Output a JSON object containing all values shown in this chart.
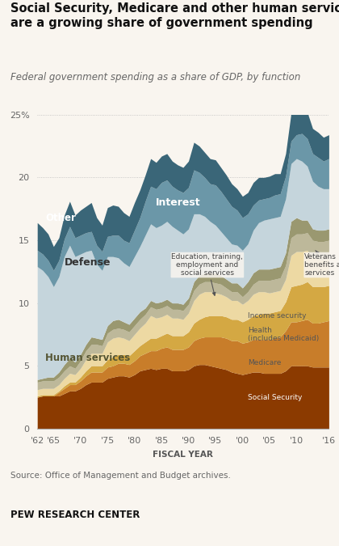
{
  "title": "Social Security, Medicare and other human services\nare a growing share of government spending",
  "subtitle": "Federal government spending as a share of GDP, by function",
  "xlabel": "FISCAL YEAR",
  "source": "Source: Office of Management and Budget archives.",
  "brand": "PEW RESEARCH CENTER",
  "years": [
    1962,
    1963,
    1964,
    1965,
    1966,
    1967,
    1968,
    1969,
    1970,
    1971,
    1972,
    1973,
    1974,
    1975,
    1976,
    1977,
    1978,
    1979,
    1980,
    1981,
    1982,
    1983,
    1984,
    1985,
    1986,
    1987,
    1988,
    1989,
    1990,
    1991,
    1992,
    1993,
    1994,
    1995,
    1996,
    1997,
    1998,
    1999,
    2000,
    2001,
    2002,
    2003,
    2004,
    2005,
    2006,
    2007,
    2008,
    2009,
    2010,
    2011,
    2012,
    2013,
    2014,
    2015,
    2016
  ],
  "social_security": [
    2.5,
    2.6,
    2.6,
    2.6,
    2.6,
    2.8,
    3.0,
    3.0,
    3.2,
    3.5,
    3.7,
    3.7,
    3.7,
    4.0,
    4.1,
    4.2,
    4.2,
    4.1,
    4.3,
    4.6,
    4.7,
    4.8,
    4.7,
    4.8,
    4.8,
    4.6,
    4.6,
    4.6,
    4.7,
    5.0,
    5.1,
    5.1,
    5.0,
    4.9,
    4.8,
    4.7,
    4.5,
    4.4,
    4.3,
    4.4,
    4.5,
    4.5,
    4.4,
    4.4,
    4.4,
    4.4,
    4.6,
    5.0,
    5.0,
    5.0,
    5.0,
    4.9,
    4.9,
    4.9,
    4.9
  ],
  "medicare": [
    0.0,
    0.0,
    0.0,
    0.0,
    0.3,
    0.4,
    0.5,
    0.5,
    0.6,
    0.7,
    0.8,
    0.8,
    0.8,
    0.9,
    0.9,
    1.0,
    1.0,
    1.0,
    1.1,
    1.2,
    1.3,
    1.4,
    1.5,
    1.6,
    1.7,
    1.7,
    1.7,
    1.7,
    1.8,
    2.0,
    2.1,
    2.2,
    2.3,
    2.4,
    2.5,
    2.5,
    2.5,
    2.6,
    2.5,
    2.5,
    2.6,
    2.6,
    2.7,
    2.7,
    2.8,
    2.9,
    3.2,
    3.5,
    3.5,
    3.6,
    3.7,
    3.5,
    3.5,
    3.6,
    3.7
  ],
  "health": [
    0.1,
    0.1,
    0.1,
    0.1,
    0.1,
    0.2,
    0.2,
    0.2,
    0.3,
    0.4,
    0.5,
    0.5,
    0.5,
    0.6,
    0.7,
    0.7,
    0.7,
    0.7,
    0.8,
    0.8,
    0.9,
    1.0,
    1.0,
    1.0,
    1.1,
    1.1,
    1.1,
    1.1,
    1.2,
    1.4,
    1.5,
    1.6,
    1.7,
    1.7,
    1.7,
    1.7,
    1.7,
    1.7,
    1.7,
    1.8,
    1.9,
    2.0,
    2.1,
    2.1,
    2.1,
    2.1,
    2.3,
    2.8,
    2.9,
    2.9,
    3.0,
    2.9,
    2.9,
    2.8,
    2.8
  ],
  "income_security": [
    0.5,
    0.5,
    0.5,
    0.5,
    0.5,
    0.6,
    0.7,
    0.6,
    0.7,
    0.9,
    1.0,
    1.0,
    1.0,
    1.4,
    1.5,
    1.4,
    1.3,
    1.2,
    1.3,
    1.4,
    1.5,
    1.8,
    1.6,
    1.5,
    1.5,
    1.4,
    1.4,
    1.3,
    1.5,
    1.8,
    2.0,
    2.0,
    1.9,
    1.8,
    1.7,
    1.6,
    1.5,
    1.5,
    1.4,
    1.5,
    1.7,
    1.8,
    1.7,
    1.6,
    1.6,
    1.6,
    1.8,
    2.5,
    2.7,
    2.6,
    2.5,
    2.3,
    2.2,
    2.1,
    2.1
  ],
  "veterans": [
    0.6,
    0.6,
    0.6,
    0.6,
    0.6,
    0.6,
    0.6,
    0.5,
    0.6,
    0.7,
    0.7,
    0.7,
    0.6,
    0.7,
    0.7,
    0.7,
    0.7,
    0.7,
    0.7,
    0.7,
    0.7,
    0.7,
    0.7,
    0.7,
    0.7,
    0.7,
    0.7,
    0.7,
    0.7,
    0.8,
    0.8,
    0.8,
    0.8,
    0.8,
    0.8,
    0.7,
    0.7,
    0.7,
    0.6,
    0.7,
    0.8,
    0.9,
    0.9,
    1.0,
    1.0,
    1.0,
    1.1,
    1.4,
    1.4,
    1.4,
    1.4,
    1.4,
    1.4,
    1.5,
    1.5
  ],
  "education": [
    0.2,
    0.2,
    0.3,
    0.3,
    0.4,
    0.5,
    0.6,
    0.5,
    0.5,
    0.5,
    0.6,
    0.5,
    0.5,
    0.6,
    0.7,
    0.7,
    0.6,
    0.6,
    0.6,
    0.6,
    0.5,
    0.5,
    0.5,
    0.5,
    0.5,
    0.5,
    0.5,
    0.5,
    0.5,
    0.7,
    0.7,
    0.7,
    0.7,
    0.8,
    0.7,
    0.7,
    0.7,
    0.7,
    0.7,
    0.8,
    0.9,
    0.9,
    0.9,
    0.9,
    0.9,
    0.9,
    1.0,
    1.3,
    1.3,
    1.1,
    1.0,
    0.9,
    0.9,
    0.9,
    0.9
  ],
  "defense": [
    9.0,
    8.6,
    8.0,
    7.2,
    7.6,
    8.6,
    9.0,
    8.4,
    8.0,
    7.4,
    6.9,
    5.9,
    5.5,
    5.5,
    5.1,
    4.9,
    4.7,
    4.6,
    4.9,
    5.2,
    5.8,
    6.1,
    6.0,
    6.1,
    6.2,
    6.1,
    5.8,
    5.6,
    5.5,
    5.4,
    4.9,
    4.5,
    4.1,
    3.8,
    3.5,
    3.3,
    3.1,
    3.0,
    3.0,
    3.0,
    3.4,
    3.7,
    3.9,
    4.0,
    4.0,
    4.0,
    4.3,
    4.6,
    4.7,
    4.7,
    4.3,
    3.8,
    3.5,
    3.3,
    3.2
  ],
  "interest": [
    1.3,
    1.3,
    1.3,
    1.3,
    1.3,
    1.4,
    1.5,
    1.5,
    1.5,
    1.5,
    1.5,
    1.5,
    1.5,
    1.6,
    1.7,
    1.8,
    1.8,
    1.9,
    2.1,
    2.3,
    2.7,
    3.0,
    3.1,
    3.4,
    3.3,
    3.2,
    3.2,
    3.3,
    3.3,
    3.5,
    3.3,
    3.1,
    3.0,
    3.2,
    3.2,
    3.1,
    3.0,
    2.8,
    2.6,
    2.4,
    2.0,
    1.8,
    1.7,
    1.7,
    1.8,
    1.8,
    1.8,
    1.8,
    1.9,
    2.2,
    2.2,
    2.2,
    2.3,
    2.2,
    2.4
  ],
  "other": [
    2.2,
    2.1,
    2.1,
    1.9,
    1.8,
    1.9,
    2.0,
    1.8,
    2.0,
    2.1,
    2.3,
    2.2,
    2.1,
    2.3,
    2.4,
    2.3,
    2.2,
    2.1,
    2.2,
    2.2,
    2.1,
    2.2,
    2.1,
    2.1,
    2.1,
    2.0,
    2.0,
    2.0,
    2.1,
    2.2,
    2.1,
    2.0,
    2.0,
    2.0,
    1.9,
    1.9,
    1.8,
    1.7,
    1.7,
    1.7,
    1.8,
    1.8,
    1.7,
    1.7,
    1.7,
    1.6,
    1.8,
    2.2,
    2.2,
    2.2,
    2.1,
    2.0,
    2.0,
    1.9,
    1.9
  ],
  "colors": {
    "social_security": "#8B3A00",
    "medicare": "#C87D2A",
    "health": "#D4A843",
    "income_security": "#EDD9A3",
    "veterans": "#BDB89A",
    "education": "#9A9870",
    "defense": "#C5D5DC",
    "interest": "#6B97A8",
    "other": "#3A6678"
  },
  "xticks": [
    1962,
    1965,
    1970,
    1975,
    1980,
    1985,
    1990,
    1995,
    2000,
    2005,
    2010,
    2016
  ],
  "xtick_labels": [
    "'62",
    "'65",
    "'70",
    "'75",
    "'80",
    "'85",
    "'90",
    "'95",
    "'00",
    "'05",
    "'10",
    "'16"
  ],
  "yticks": [
    0,
    5,
    10,
    15,
    20,
    25
  ],
  "ytick_labels": [
    "0",
    "5",
    "10",
    "15",
    "20",
    "25%"
  ],
  "background_color": "#f9f5ef"
}
